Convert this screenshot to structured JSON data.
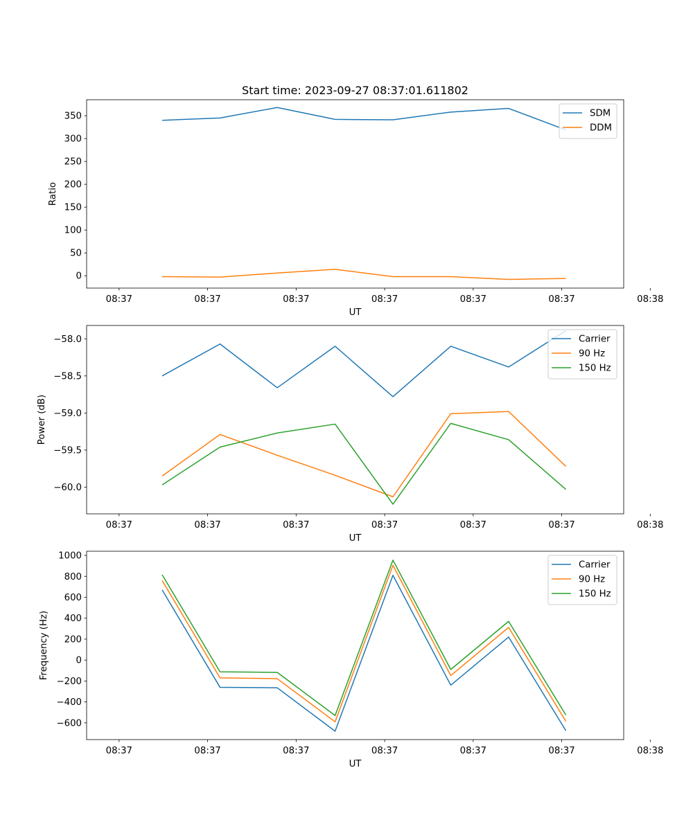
{
  "chart_data": {
    "title": "Start time: 2023-09-27 08:37:01.611802",
    "charts": [
      {
        "id": "ratio",
        "type": "line",
        "xlabel": "UT",
        "ylabel": "Ratio",
        "xlim": [
          -0.55,
          8.55
        ],
        "ylim": [
          -27,
          385
        ],
        "x_tick_values": [
          0,
          1.5,
          3,
          4.5,
          6,
          7.5,
          9
        ],
        "x_tick_labels": [
          "08:37",
          "08:37",
          "08:37",
          "08:37",
          "08:37",
          "08:37",
          "08:38"
        ],
        "y_ticks": [
          0,
          50,
          100,
          150,
          200,
          250,
          300,
          350
        ],
        "y_tick_labels": [
          "0",
          "50",
          "100",
          "150",
          "200",
          "250",
          "300",
          "350"
        ],
        "x": [
          0.73,
          1.71,
          2.68,
          3.66,
          4.64,
          5.62,
          6.6,
          7.57
        ],
        "legend": "top-right",
        "series": [
          {
            "name": "SDM",
            "color": "#1f77b4",
            "values": [
              340,
              345,
              368,
              342,
              341,
              358,
              366,
              319
            ]
          },
          {
            "name": "DDM",
            "color": "#ff7f0e",
            "values": [
              -2,
              -3,
              6,
              14,
              -2,
              -2,
              -8,
              -6
            ]
          }
        ]
      },
      {
        "id": "power",
        "type": "line",
        "xlabel": "UT",
        "ylabel": "Power (dB)",
        "xlim": [
          -0.55,
          8.55
        ],
        "ylim": [
          -60.36,
          -57.82
        ],
        "x_tick_values": [
          0,
          1.5,
          3,
          4.5,
          6,
          7.5,
          9
        ],
        "x_tick_labels": [
          "08:37",
          "08:37",
          "08:37",
          "08:37",
          "08:37",
          "08:37",
          "08:38"
        ],
        "y_ticks": [
          -60.0,
          -59.5,
          -59.0,
          -58.5,
          -58.0
        ],
        "y_tick_labels": [
          "−60.0",
          "−59.5",
          "−59.0",
          "−58.5",
          "−58.0"
        ],
        "x": [
          0.73,
          1.71,
          2.68,
          3.66,
          4.64,
          5.62,
          6.6,
          7.57
        ],
        "legend": "top-right",
        "series": [
          {
            "name": "Carrier",
            "color": "#1f77b4",
            "values": [
              -58.5,
              -58.07,
              -58.66,
              -58.1,
              -58.78,
              -58.1,
              -58.38,
              -57.89
            ]
          },
          {
            "name": "90 Hz",
            "color": "#ff7f0e",
            "values": [
              -59.85,
              -59.29,
              -59.57,
              -59.84,
              -60.13,
              -59.01,
              -58.98,
              -59.72
            ]
          },
          {
            "name": "150 Hz",
            "color": "#2ca02c",
            "values": [
              -59.97,
              -59.46,
              -59.27,
              -59.15,
              -60.23,
              -59.14,
              -59.36,
              -60.03
            ]
          }
        ]
      },
      {
        "id": "frequency",
        "type": "line",
        "xlabel": "UT",
        "ylabel": "Frequency (Hz)",
        "xlim": [
          -0.55,
          8.55
        ],
        "ylim": [
          -760,
          1040
        ],
        "x_tick_values": [
          0,
          1.5,
          3,
          4.5,
          6,
          7.5,
          9
        ],
        "x_tick_labels": [
          "08:37",
          "08:37",
          "08:37",
          "08:37",
          "08:37",
          "08:37",
          "08:38"
        ],
        "y_ticks": [
          -600,
          -400,
          -200,
          0,
          200,
          400,
          600,
          800,
          1000
        ],
        "y_tick_labels": [
          "−600",
          "−400",
          "−200",
          "0",
          "200",
          "400",
          "600",
          "800",
          "1000"
        ],
        "x": [
          0.73,
          1.71,
          2.68,
          3.66,
          4.64,
          5.62,
          6.6,
          7.57
        ],
        "legend": "top-right",
        "series": [
          {
            "name": "Carrier",
            "color": "#1f77b4",
            "values": [
              670,
              -260,
              -265,
              -680,
              810,
              -240,
              220,
              -675
            ]
          },
          {
            "name": "90 Hz",
            "color": "#ff7f0e",
            "values": [
              760,
              -170,
              -178,
              -590,
              905,
              -148,
              312,
              -585
            ]
          },
          {
            "name": "150 Hz",
            "color": "#2ca02c",
            "values": [
              815,
              -112,
              -118,
              -530,
              955,
              -90,
              370,
              -525
            ]
          }
        ]
      }
    ]
  }
}
